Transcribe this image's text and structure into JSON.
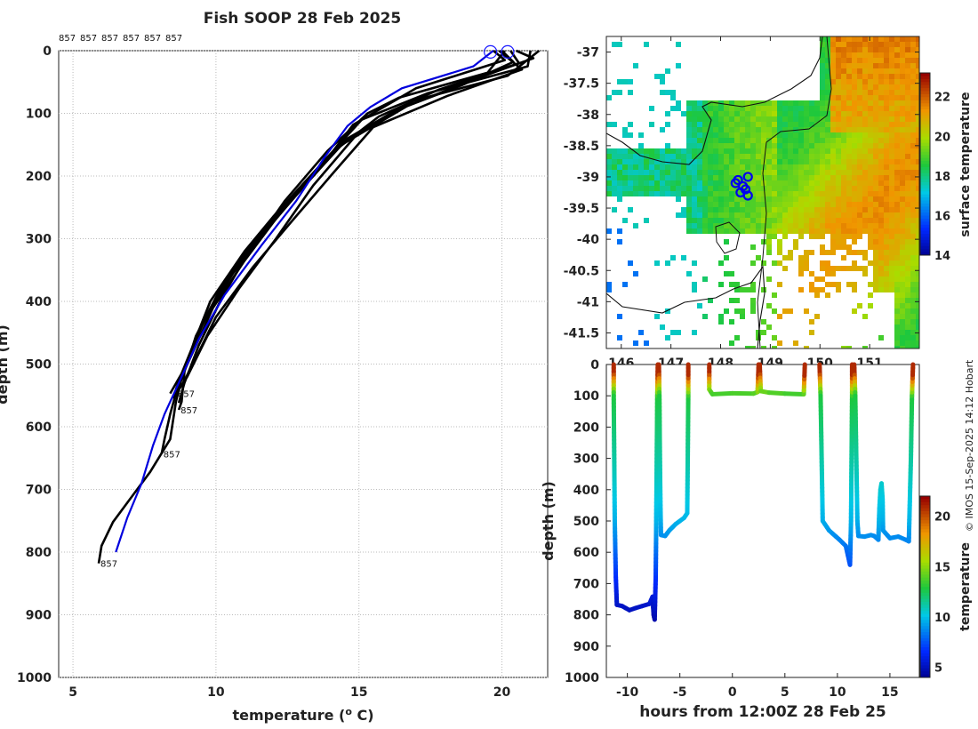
{
  "chart_data": [
    {
      "type": "line",
      "title": "Fish SOOP 28 Feb 2025",
      "xlabel": "temperature (",
      "xlabel_sup": "o",
      "xlabel_unit": " C)",
      "ylabel": "depth (m)",
      "xlim": [
        4.5,
        21.6
      ],
      "ylim": [
        1000,
        0
      ],
      "xticks": [
        5,
        10,
        15,
        20
      ],
      "yticks": [
        0,
        100,
        200,
        300,
        400,
        500,
        600,
        700,
        800,
        900,
        1000
      ],
      "profile_id_labels": [
        "857",
        "857",
        "857",
        "857",
        "857",
        "857"
      ],
      "end_labels": [
        {
          "text": "857",
          "t": 8.6,
          "d": 547
        },
        {
          "text": "857",
          "t": 8.7,
          "d": 573
        },
        {
          "text": "857",
          "t": 8.1,
          "d": 643
        },
        {
          "text": "857",
          "t": 5.9,
          "d": 818
        }
      ],
      "series": [
        {
          "name": "xbt-profiles",
          "color": "#000000",
          "profiles": [
            [
              [
                20.0,
                0
              ],
              [
                20.4,
                18
              ],
              [
                18.6,
                55
              ],
              [
                16.3,
                95
              ],
              [
                14.6,
                140
              ],
              [
                13.2,
                205
              ],
              [
                12.0,
                265
              ],
              [
                11.0,
                320
              ],
              [
                9.8,
                400
              ],
              [
                9.2,
                470
              ],
              [
                8.8,
                515
              ],
              [
                8.4,
                547
              ]
            ],
            [
              [
                20.3,
                0
              ],
              [
                20.6,
                20
              ],
              [
                17.8,
                62
              ],
              [
                15.7,
                105
              ],
              [
                14.0,
                165
              ],
              [
                12.7,
                230
              ],
              [
                11.5,
                295
              ],
              [
                10.4,
                365
              ],
              [
                9.5,
                440
              ],
              [
                8.9,
                505
              ],
              [
                8.6,
                560
              ],
              [
                8.4,
                620
              ],
              [
                7.7,
                672
              ],
              [
                7.0,
                715
              ],
              [
                6.4,
                752
              ],
              [
                6.0,
                790
              ],
              [
                5.9,
                818
              ]
            ],
            [
              [
                21.0,
                0
              ],
              [
                20.9,
                25
              ],
              [
                17.4,
                68
              ],
              [
                15.1,
                110
              ],
              [
                13.8,
                175
              ],
              [
                12.5,
                245
              ],
              [
                11.2,
                310
              ],
              [
                10.1,
                385
              ],
              [
                9.3,
                455
              ],
              [
                8.9,
                512
              ],
              [
                8.8,
                560
              ],
              [
                8.7,
                573
              ]
            ],
            [
              [
                19.7,
                0
              ],
              [
                20.1,
                15
              ],
              [
                17.0,
                60
              ],
              [
                14.8,
                118
              ],
              [
                13.6,
                190
              ],
              [
                12.2,
                262
              ],
              [
                11.0,
                335
              ],
              [
                9.9,
                410
              ],
              [
                9.2,
                480
              ],
              [
                8.7,
                530
              ],
              [
                8.4,
                580
              ],
              [
                8.2,
                620
              ],
              [
                8.1,
                643
              ]
            ],
            [
              [
                20.5,
                0
              ],
              [
                21.1,
                12
              ],
              [
                18.9,
                48
              ],
              [
                16.7,
                88
              ],
              [
                14.4,
                150
              ],
              [
                13.0,
                220
              ],
              [
                11.7,
                290
              ],
              [
                10.6,
                355
              ],
              [
                9.6,
                430
              ],
              [
                9.0,
                495
              ],
              [
                8.6,
                540
              ]
            ],
            [
              [
                19.9,
                0
              ],
              [
                20.7,
                30
              ],
              [
                18.1,
                72
              ],
              [
                15.5,
                122
              ],
              [
                14.1,
                195
              ],
              [
                12.6,
                275
              ],
              [
                11.3,
                345
              ],
              [
                10.0,
                425
              ],
              [
                9.3,
                490
              ],
              [
                8.8,
                535
              ]
            ],
            [
              [
                21.3,
                0
              ],
              [
                20.2,
                40
              ],
              [
                16.9,
                80
              ],
              [
                14.9,
                135
              ],
              [
                13.4,
                215
              ],
              [
                12.1,
                300
              ],
              [
                10.8,
                380
              ],
              [
                9.7,
                455
              ],
              [
                9.0,
                520
              ],
              [
                8.5,
                555
              ]
            ],
            [
              [
                20.1,
                0
              ],
              [
                19.5,
                35
              ],
              [
                16.4,
                75
              ],
              [
                15.3,
                100
              ],
              [
                13.9,
                160
              ],
              [
                12.4,
                240
              ],
              [
                11.1,
                325
              ],
              [
                10.2,
                395
              ],
              [
                9.4,
                470
              ],
              [
                8.9,
                530
              ],
              [
                8.7,
                562
              ]
            ]
          ]
        },
        {
          "name": "climatology",
          "color": "#0000dd",
          "points": [
            [
              19.7,
              0
            ],
            [
              19.0,
              25
            ],
            [
              16.5,
              60
            ],
            [
              15.4,
              90
            ],
            [
              14.6,
              120
            ],
            [
              13.8,
              170
            ],
            [
              12.8,
              240
            ],
            [
              11.6,
              310
            ],
            [
              10.3,
              390
            ],
            [
              9.4,
              460
            ],
            [
              8.7,
              530
            ],
            [
              8.2,
              580
            ],
            [
              7.8,
              630
            ],
            [
              7.4,
              690
            ],
            [
              6.9,
              745
            ],
            [
              6.5,
              800
            ]
          ]
        },
        {
          "name": "surface-markers",
          "color": "#1a1aff",
          "points": [
            [
              19.6,
              2
            ],
            [
              20.2,
              2
            ]
          ]
        }
      ]
    },
    {
      "type": "heatmap",
      "name": "surface temperature map",
      "lon_ticks": [
        "146",
        "147",
        "148",
        "149",
        "150",
        "151"
      ],
      "lat_ticks": [
        "-37",
        "-37.5",
        "-38",
        "-38.5",
        "-39",
        "-39.5",
        "-40",
        "-40.5",
        "-41",
        "-41.5"
      ],
      "lon_values": [
        146,
        147,
        148,
        149,
        150,
        151
      ],
      "lat_values": [
        -37,
        -37.5,
        -38,
        -38.5,
        -39,
        -39.5,
        -40,
        -40.5,
        -41,
        -41.5
      ],
      "lon_range": [
        145.7,
        152.0
      ],
      "lat_range": [
        -41.75,
        -36.75
      ],
      "colorbar_label": "surface temperature",
      "colorbar_ticks": [
        "14",
        "16",
        "18",
        "20",
        "22"
      ],
      "colorbar_tick_values": [
        14,
        16,
        18,
        20,
        22
      ],
      "colorbar_range": [
        14,
        23.2
      ],
      "track_points": [
        [
          148.35,
          -39.05
        ],
        [
          148.45,
          -39.15
        ],
        [
          148.5,
          -39.2
        ],
        [
          148.55,
          -39.3
        ],
        [
          148.4,
          -39.25
        ],
        [
          148.3,
          -39.1
        ],
        [
          148.55,
          -39.0
        ]
      ]
    },
    {
      "type": "scatter",
      "name": "depth-time section",
      "xlabel": "hours from 12:00Z 28 Feb 25",
      "ylabel": "depth (m)",
      "xlim": [
        -12,
        17.8
      ],
      "ylim": [
        1000,
        0
      ],
      "xticks": [
        "-10",
        "-5",
        "0",
        "5",
        "10",
        "15"
      ],
      "xtick_values": [
        -10,
        -5,
        0,
        5,
        10,
        15
      ],
      "yticks": [
        "0",
        "100",
        "200",
        "300",
        "400",
        "500",
        "600",
        "700",
        "800",
        "900",
        "1000"
      ],
      "ytick_values": [
        0,
        100,
        200,
        300,
        400,
        500,
        600,
        700,
        800,
        900,
        1000
      ],
      "colorbar_label": "temperature",
      "colorbar_ticks": [
        "5",
        "10",
        "15",
        "20"
      ],
      "colorbar_tick_values": [
        5,
        10,
        15,
        20
      ],
      "colorbar_range": [
        4,
        22
      ],
      "segments": [
        [
          [
            -11.3,
            0
          ],
          [
            -11.3,
            100
          ],
          [
            -11.25,
            300
          ],
          [
            -11.2,
            500
          ],
          [
            -11.1,
            680
          ],
          [
            -11.0,
            768
          ],
          [
            -10.5,
            772
          ],
          [
            -9.8,
            785
          ],
          [
            -9.2,
            778
          ],
          [
            -8.6,
            772
          ],
          [
            -7.9,
            765
          ],
          [
            -7.6,
            742
          ],
          [
            -7.5,
            800
          ],
          [
            -7.4,
            815
          ],
          [
            -7.3,
            680
          ],
          [
            -7.25,
            500
          ],
          [
            -7.2,
            300
          ],
          [
            -7.15,
            100
          ],
          [
            -7.1,
            0
          ]
        ],
        [
          [
            -7.0,
            0
          ],
          [
            -6.95,
            100
          ],
          [
            -6.9,
            300
          ],
          [
            -6.85,
            450
          ],
          [
            -6.8,
            545
          ],
          [
            -6.4,
            548
          ],
          [
            -6.0,
            530
          ],
          [
            -5.4,
            510
          ],
          [
            -4.6,
            490
          ],
          [
            -4.3,
            475
          ],
          [
            -4.25,
            300
          ],
          [
            -4.2,
            100
          ],
          [
            -4.2,
            0
          ]
        ],
        [
          [
            -2.2,
            0
          ],
          [
            -2.2,
            80
          ],
          [
            -1.9,
            95
          ],
          [
            0,
            92
          ],
          [
            2.0,
            93
          ],
          [
            2.4,
            88
          ],
          [
            2.5,
            0
          ],
          [
            2.6,
            0
          ],
          [
            2.7,
            85
          ],
          [
            3.5,
            90
          ],
          [
            5.0,
            93
          ],
          [
            6.8,
            95
          ],
          [
            6.9,
            0
          ]
        ],
        [
          [
            8.3,
            0
          ],
          [
            8.4,
            100
          ],
          [
            8.5,
            300
          ],
          [
            8.6,
            500
          ],
          [
            9.2,
            530
          ],
          [
            10.2,
            560
          ],
          [
            10.8,
            580
          ],
          [
            11.0,
            610
          ],
          [
            11.2,
            640
          ],
          [
            11.3,
            500
          ],
          [
            11.35,
            300
          ],
          [
            11.4,
            100
          ],
          [
            11.4,
            0
          ]
        ],
        [
          [
            11.6,
            0
          ],
          [
            11.7,
            100
          ],
          [
            11.8,
            300
          ],
          [
            11.9,
            500
          ],
          [
            12.0,
            548
          ],
          [
            12.6,
            550
          ],
          [
            13.2,
            545
          ],
          [
            13.5,
            548
          ],
          [
            13.9,
            560
          ],
          [
            14.0,
            460
          ],
          [
            14.1,
            400
          ],
          [
            14.2,
            380
          ],
          [
            14.3,
            430
          ],
          [
            14.35,
            530
          ],
          [
            15.0,
            555
          ],
          [
            15.8,
            550
          ],
          [
            16.5,
            560
          ],
          [
            16.8,
            565
          ],
          [
            17.0,
            300
          ],
          [
            17.1,
            100
          ],
          [
            17.2,
            0
          ]
        ]
      ]
    }
  ],
  "credit": "© IMOS 15-Sep-2025 14:12 Hobart"
}
